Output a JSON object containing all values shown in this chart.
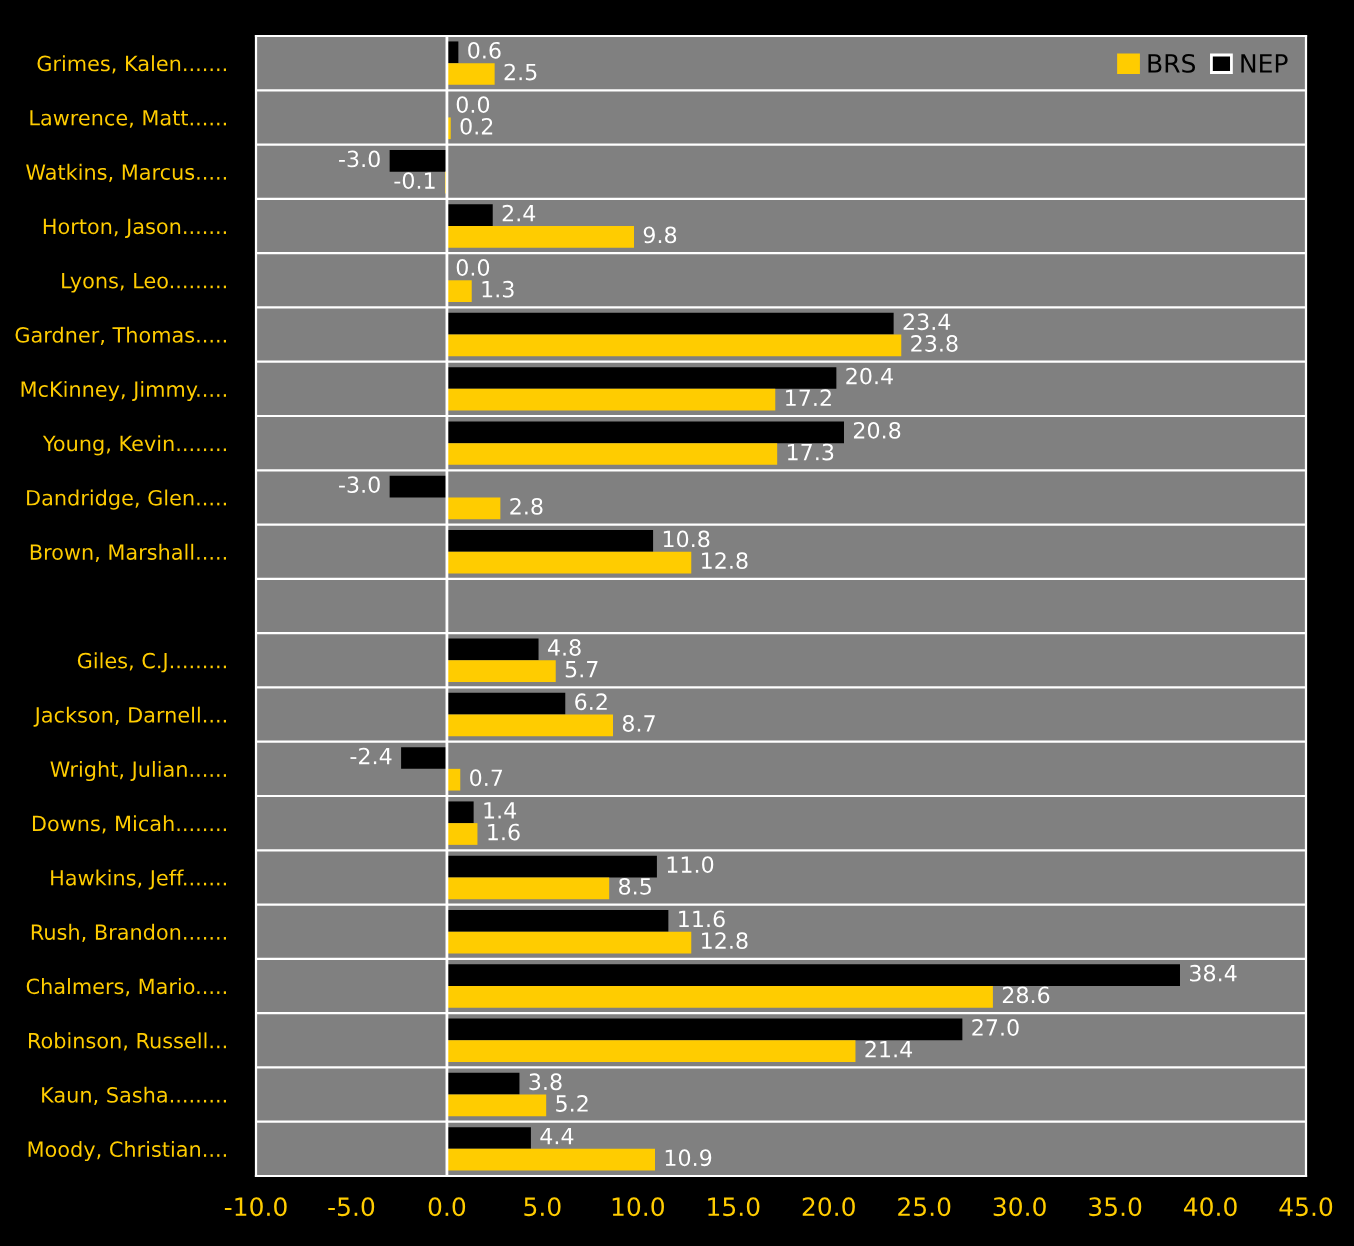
{
  "chart_data": {
    "type": "bar",
    "orientation": "horizontal",
    "categories": [
      "Grimes, Kalen.......",
      "Lawrence, Matt......",
      "Watkins, Marcus.....",
      "Horton, Jason.......",
      "Lyons, Leo.........",
      "Gardner, Thomas.....",
      "McKinney, Jimmy.....",
      "Young, Kevin........",
      "Dandridge, Glen.....",
      "Brown, Marshall.....",
      null,
      "Giles, C.J.........",
      "Jackson, Darnell....",
      "Wright, Julian......",
      "Downs, Micah........",
      "Hawkins, Jeff.......",
      "Rush, Brandon.......",
      "Chalmers, Mario.....",
      "Robinson, Russell...",
      "Kaun, Sasha.........",
      "Moody, Christian...."
    ],
    "series": [
      {
        "name": "NEP",
        "color": "#000000",
        "values": [
          0.6,
          0.0,
          -3.0,
          2.4,
          0.0,
          23.4,
          20.4,
          20.8,
          -3.0,
          10.8,
          null,
          4.8,
          6.2,
          -2.4,
          1.4,
          11.0,
          11.6,
          38.4,
          27.0,
          3.8,
          4.4
        ],
        "value_labels": [
          "0.6",
          "0.0",
          "-3.0",
          "2.4",
          "0.0",
          "23.4",
          "20.4",
          "20.8",
          "-3.0",
          "10.8",
          null,
          "4.8",
          "6.2",
          "-2.4",
          "1.4",
          "11.0",
          "11.6",
          "38.4",
          "27.0",
          "3.8",
          "4.4"
        ]
      },
      {
        "name": "BRS",
        "color": "#ffcc00",
        "values": [
          2.5,
          0.2,
          -0.1,
          9.8,
          1.3,
          23.8,
          17.2,
          17.3,
          2.8,
          12.8,
          null,
          5.7,
          8.7,
          0.7,
          1.6,
          8.5,
          12.8,
          28.6,
          21.4,
          5.2,
          10.9
        ],
        "value_labels": [
          "2.5",
          "0.2",
          "-0.1",
          "9.8",
          "1.3",
          "23.8",
          "17.2",
          "17.3",
          "2.8",
          "12.8",
          null,
          "5.7",
          "8.7",
          "0.7",
          "1.6",
          "8.5",
          "12.8",
          "28.6",
          "21.4",
          "5.2",
          "10.9"
        ]
      }
    ],
    "xlim": [
      -10,
      45
    ],
    "xticks": [
      {
        "value": -10,
        "label": "-10.0"
      },
      {
        "value": -5,
        "label": "-5.0"
      },
      {
        "value": 0,
        "label": "0.0"
      },
      {
        "value": 5,
        "label": "5.0"
      },
      {
        "value": 10,
        "label": "10.0"
      },
      {
        "value": 15,
        "label": "15.0"
      },
      {
        "value": 20,
        "label": "20.0"
      },
      {
        "value": 25,
        "label": "25.0"
      },
      {
        "value": 30,
        "label": "30.0"
      },
      {
        "value": 35,
        "label": "35.0"
      },
      {
        "value": 40,
        "label": "40.0"
      },
      {
        "value": 45,
        "label": "45.0"
      }
    ],
    "ref_lines": [
      {
        "axis": "x",
        "value": 0,
        "color": "#ffffff"
      }
    ],
    "grid": "y",
    "legend": "top right"
  }
}
